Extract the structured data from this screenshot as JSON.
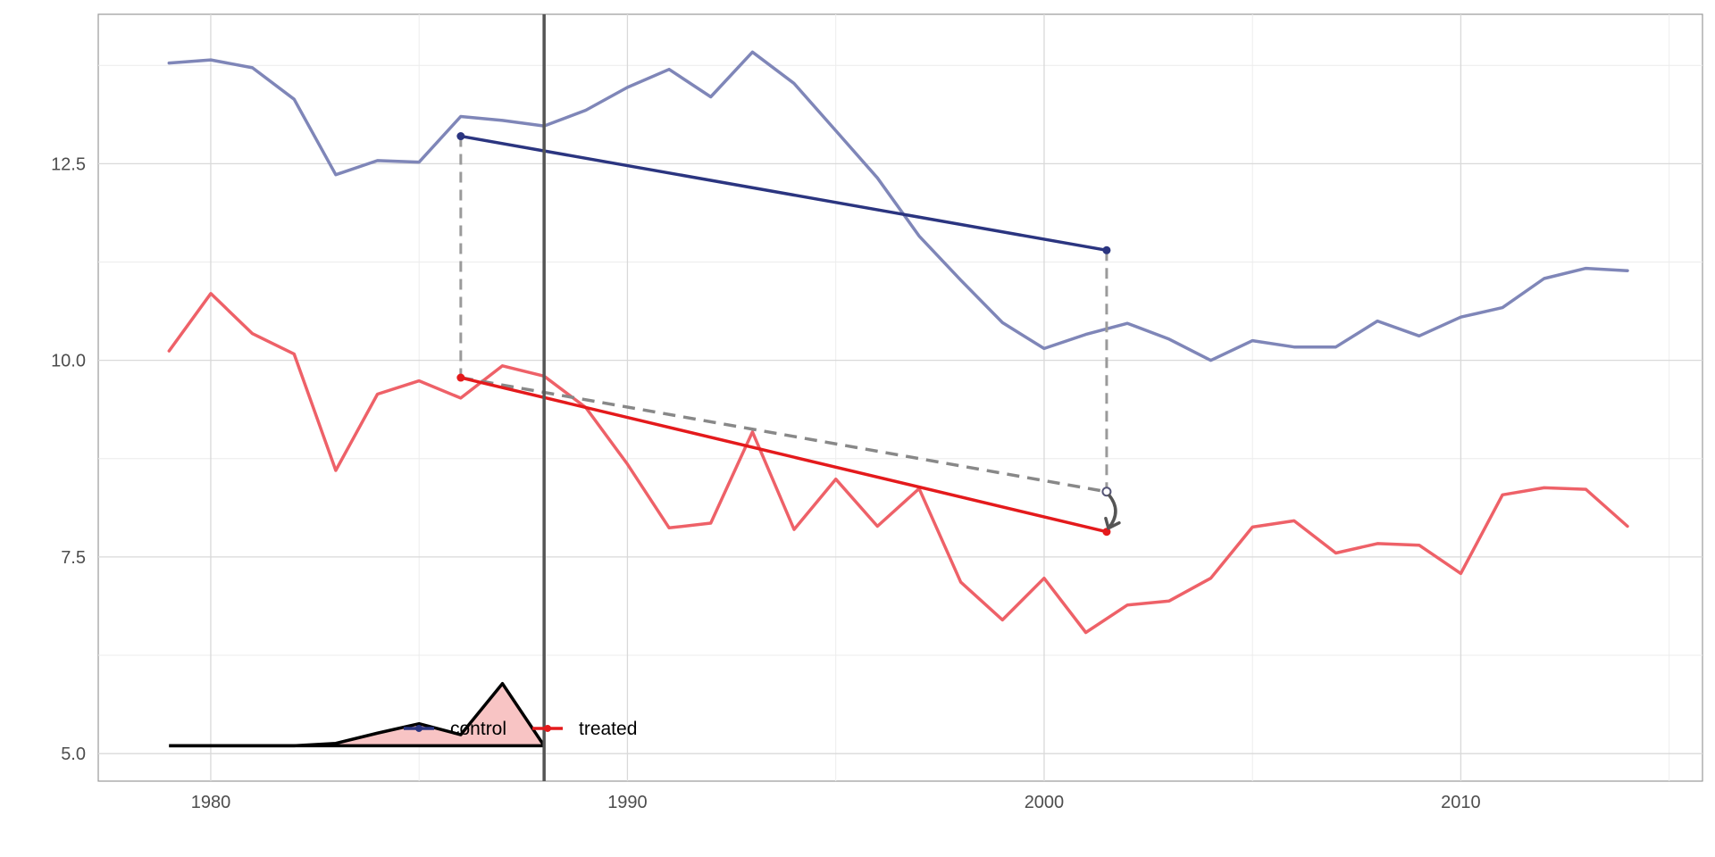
{
  "chart_data": {
    "type": "line",
    "title": "",
    "xlabel": "",
    "ylabel": "",
    "xlim": [
      1977.3,
      2015.8
    ],
    "ylim": [
      4.65,
      14.4
    ],
    "x_ticks": [
      1980,
      1990,
      2000,
      2010
    ],
    "y_ticks": [
      5.0,
      7.5,
      10.0,
      12.5
    ],
    "y_tick_labels": [
      "5.0",
      "7.5",
      "10.0",
      "12.5"
    ],
    "grid": true,
    "treatment_line_x": 1988,
    "years": [
      1979,
      1980,
      1981,
      1982,
      1983,
      1984,
      1985,
      1986,
      1987,
      1988,
      1989,
      1990,
      1991,
      1992,
      1993,
      1994,
      1995,
      1996,
      1997,
      1998,
      1999,
      2000,
      2001,
      2002,
      2003,
      2004,
      2005,
      2006,
      2007,
      2008,
      2009,
      2010,
      2011,
      2012,
      2013,
      2014
    ],
    "series": [
      {
        "name": "control",
        "color": "#7f86b8",
        "values": [
          13.78,
          13.82,
          13.72,
          13.32,
          12.36,
          12.54,
          12.52,
          13.1,
          13.05,
          12.98,
          13.18,
          13.47,
          13.7,
          13.35,
          13.92,
          13.52,
          12.92,
          12.32,
          11.58,
          11.02,
          10.48,
          10.15,
          10.33,
          10.47,
          10.27,
          10.0,
          10.25,
          10.17,
          10.17,
          10.5,
          10.31,
          10.55,
          10.67,
          11.04,
          11.17,
          11.14
        ]
      },
      {
        "name": "treated",
        "color": "#ee6168",
        "values": [
          10.12,
          10.85,
          10.34,
          10.08,
          8.6,
          9.57,
          9.74,
          9.52,
          9.93,
          9.8,
          9.4,
          8.68,
          7.87,
          7.93,
          9.09,
          7.85,
          8.49,
          7.89,
          8.37,
          7.18,
          6.7,
          7.23,
          6.54,
          6.89,
          6.94,
          7.23,
          7.88,
          7.96,
          7.55,
          7.67,
          7.65,
          7.29,
          8.29,
          8.38,
          8.36,
          7.89
        ]
      }
    ],
    "did_segments": {
      "pre_x": 1986,
      "post_x": 2001.5,
      "control": {
        "pre": 12.85,
        "post": 11.4,
        "color": "#2b3580"
      },
      "treated": {
        "pre": 9.78,
        "post": 7.82,
        "color": "#e41a1c"
      },
      "counterfactual": {
        "pre": 9.78,
        "post": 8.33,
        "color": "#888888"
      }
    },
    "legend": {
      "items": [
        {
          "name": "control",
          "label": "control",
          "color": "#2b3580"
        },
        {
          "name": "treated",
          "label": "treated",
          "color": "#e41a1c"
        }
      ]
    },
    "weights_inset": {
      "description_values_only": true,
      "baseline": 5.1,
      "years": [
        1979,
        1980,
        1981,
        1982,
        1983,
        1984,
        1985,
        1986,
        1987,
        1988
      ],
      "values": [
        5.1,
        5.1,
        5.1,
        5.1,
        5.13,
        5.26,
        5.38,
        5.24,
        5.89,
        5.1
      ],
      "fill": "#f8c4c4",
      "stroke": "#000000"
    }
  }
}
